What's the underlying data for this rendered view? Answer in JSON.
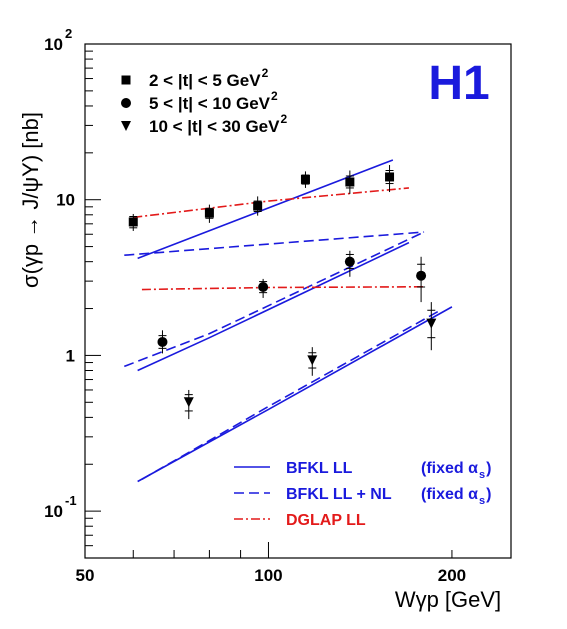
{
  "chart_data": {
    "type": "scatter",
    "xlabel": "Wγp [GeV]",
    "ylabel": "σ(γp → J/ψY) [nb]",
    "x_scale": "log",
    "y_scale": "log",
    "xlim": [
      50,
      250
    ],
    "ylim": [
      0.05,
      100
    ],
    "x_ticks": [
      {
        "value": 50,
        "label": "50"
      },
      {
        "value": 100,
        "label": "100"
      },
      {
        "value": 200,
        "label": "200"
      }
    ],
    "y_ticks": [
      {
        "value": 100,
        "base": "10",
        "exp": "2"
      },
      {
        "value": 10,
        "base": "10",
        "exp": ""
      },
      {
        "value": 1,
        "base": "1",
        "exp": ""
      },
      {
        "value": 0.1,
        "base": "10",
        "exp": "-1"
      }
    ],
    "experiment_label": "H1",
    "data_legend": [
      {
        "marker": "square",
        "text": "2 < |t| < 5 GeV",
        "sup": "2"
      },
      {
        "marker": "circle",
        "text": "5 < |t| < 10 GeV",
        "sup": "2"
      },
      {
        "marker": "triangle-down",
        "text": "10 < |t| < 30 GeV",
        "sup": "2"
      }
    ],
    "data_series": [
      {
        "marker": "square",
        "points": [
          {
            "x": 60,
            "y": 7.2,
            "lo_stat": 6.6,
            "hi_stat": 7.8,
            "lo_tot": 6.3,
            "hi_tot": 8.1
          },
          {
            "x": 80,
            "y": 8.2,
            "lo_stat": 7.6,
            "hi_stat": 8.8,
            "lo_tot": 7.1,
            "hi_tot": 9.3
          },
          {
            "x": 96,
            "y": 9.1,
            "lo_stat": 8.4,
            "hi_stat": 9.8,
            "lo_tot": 7.9,
            "hi_tot": 10.5
          },
          {
            "x": 115,
            "y": 13.5,
            "lo_stat": 12.6,
            "hi_stat": 14.4,
            "lo_tot": 11.9,
            "hi_tot": 15.2
          },
          {
            "x": 136,
            "y": 13.0,
            "lo_stat": 11.9,
            "hi_stat": 14.2,
            "lo_tot": 10.9,
            "hi_tot": 15.4
          },
          {
            "x": 158,
            "y": 14.0,
            "lo_stat": 12.7,
            "hi_stat": 15.4,
            "lo_tot": 11.2,
            "hi_tot": 16.7
          }
        ]
      },
      {
        "marker": "circle",
        "points": [
          {
            "x": 67,
            "y": 1.22,
            "lo_stat": 1.11,
            "hi_stat": 1.34,
            "lo_tot": 1.03,
            "hi_tot": 1.45
          },
          {
            "x": 98,
            "y": 2.75,
            "lo_stat": 2.53,
            "hi_stat": 2.98,
            "lo_tot": 2.34,
            "hi_tot": 3.1
          },
          {
            "x": 136,
            "y": 4.0,
            "lo_stat": 3.62,
            "hi_stat": 4.45,
            "lo_tot": 3.2,
            "hi_tot": 4.7
          },
          {
            "x": 178,
            "y": 3.25,
            "lo_stat": 2.75,
            "hi_stat": 3.85,
            "lo_tot": 2.2,
            "hi_tot": 4.3
          }
        ]
      },
      {
        "marker": "triangle-down",
        "points": [
          {
            "x": 74,
            "y": 0.5,
            "lo_stat": 0.44,
            "hi_stat": 0.56,
            "lo_tot": 0.39,
            "hi_tot": 0.6
          },
          {
            "x": 118,
            "y": 0.93,
            "lo_stat": 0.83,
            "hi_stat": 1.04,
            "lo_tot": 0.74,
            "hi_tot": 1.13
          },
          {
            "x": 185,
            "y": 1.6,
            "lo_stat": 1.3,
            "hi_stat": 1.95,
            "lo_tot": 1.08,
            "hi_tot": 2.2
          }
        ]
      }
    ],
    "curves": [
      {
        "style": "solid",
        "color": "#1a1add",
        "points": [
          [
            61,
            4.2
          ],
          [
            160,
            18.0
          ]
        ]
      },
      {
        "style": "dashed",
        "color": "#1a1add",
        "points": [
          [
            58,
            4.4
          ],
          [
            180,
            6.2
          ]
        ]
      },
      {
        "style": "dashdot",
        "color": "#e31a1a",
        "points": [
          [
            60,
            7.7
          ],
          [
            100,
            9.8
          ],
          [
            170,
            11.9
          ]
        ]
      },
      {
        "style": "solid",
        "color": "#1a1add",
        "points": [
          [
            61,
            0.8
          ],
          [
            80,
            1.3
          ],
          [
            170,
            5.3
          ]
        ]
      },
      {
        "style": "dashed",
        "color": "#1a1add",
        "points": [
          [
            58,
            0.85
          ],
          [
            80,
            1.38
          ],
          [
            180,
            6.2
          ]
        ]
      },
      {
        "style": "dashdot",
        "color": "#e31a1a",
        "points": [
          [
            62,
            2.65
          ],
          [
            100,
            2.73
          ],
          [
            180,
            2.76
          ]
        ]
      },
      {
        "style": "solid",
        "color": "#1a1add",
        "points": [
          [
            61,
            0.155
          ],
          [
            100,
            0.45
          ],
          [
            200,
            2.05
          ]
        ]
      },
      {
        "style": "dashed",
        "color": "#1a1add",
        "points": [
          [
            62,
            0.16
          ],
          [
            100,
            0.47
          ],
          [
            190,
            1.92
          ]
        ]
      }
    ],
    "model_legend": [
      {
        "style": "solid",
        "color": "#1a1add",
        "label": "BFKL LL",
        "label2": "(fixed α",
        "sub": "s",
        "close": ")"
      },
      {
        "style": "dashed",
        "color": "#1a1add",
        "label": "BFKL LL + NL",
        "label2": "(fixed α",
        "sub": "s",
        "close": ")"
      },
      {
        "style": "dashdot",
        "color": "#e31a1a",
        "label": "DGLAP LL",
        "label2": "",
        "sub": "",
        "close": ""
      }
    ],
    "colors": {
      "data": "#000000",
      "bfkl": "#1a1add",
      "dglap": "#e31a1a",
      "h1": "#1a1add",
      "frame": "#000000"
    },
    "grid": false
  }
}
